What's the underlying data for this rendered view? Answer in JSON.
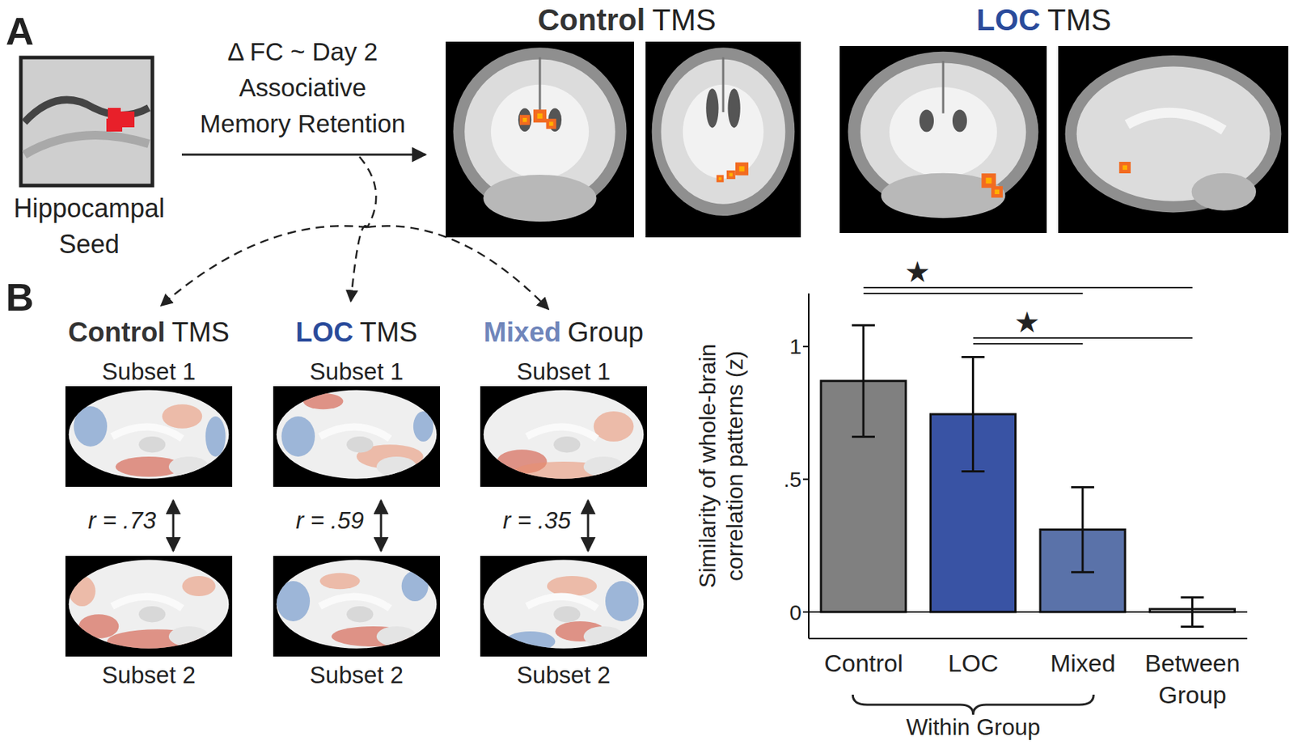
{
  "panels": {
    "A": {
      "label": "A",
      "seed_label": [
        "Hippocampal",
        "Seed"
      ],
      "arrow_label": [
        "Δ FC ~ Day 2",
        "Associative",
        "Memory Retention"
      ],
      "groups": [
        {
          "bold": "Control",
          "rest": "TMS",
          "color": "#333333"
        },
        {
          "bold": "LOC",
          "rest": "TMS",
          "color": "#2a4b9b"
        }
      ]
    },
    "B": {
      "label": "B",
      "subsets": [
        "Subset 1",
        "Subset 2"
      ],
      "groups": [
        {
          "bold": "Control",
          "rest": "TMS",
          "color": "#333333",
          "r_label": "r = .73"
        },
        {
          "bold": "LOC",
          "rest": "TMS",
          "color": "#2a4b9b",
          "r_label": "r = .59"
        },
        {
          "bold": "Mixed",
          "rest": "Group",
          "color": "#7086bb",
          "r_label": "r = .35"
        }
      ]
    }
  },
  "chart_data": {
    "type": "bar",
    "categories": [
      "Control",
      "LOC",
      "Mixed",
      "Between Group"
    ],
    "values": [
      0.87,
      0.745,
      0.31,
      0
    ],
    "errors": [
      0.21,
      0.215,
      0.16,
      0.055
    ],
    "colors": [
      "#808080",
      "#3953a4",
      "#5a72a9",
      "#ffffff"
    ],
    "ylim": [
      -0.1,
      1.2
    ],
    "yticks": [
      0,
      {
        "value": 0.5,
        "label": ".5"
      },
      1
    ],
    "ylabel": [
      "Similarity of whole-brain",
      "correlation patterns (z)"
    ],
    "group_brace": {
      "from": "Control",
      "to": "Mixed",
      "label": "Within Group"
    },
    "comparisons": [
      {
        "from": "Control",
        "to": [
          "Mixed",
          "Between Group"
        ],
        "label": "★"
      },
      {
        "from": "LOC",
        "to": [
          "Mixed",
          "Between Group"
        ],
        "label": "★"
      }
    ]
  }
}
